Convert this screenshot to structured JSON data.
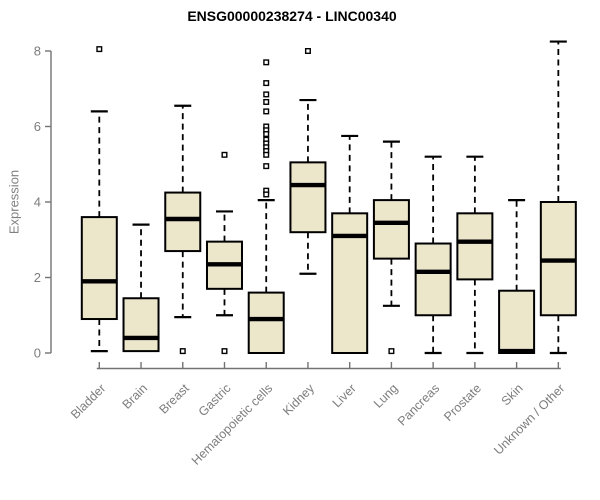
{
  "colors": {
    "background": "#ffffff",
    "box_fill": "#ece6cb",
    "box_stroke": "#000000",
    "median": "#000000",
    "whisker": "#000000",
    "outlier_stroke": "#000000",
    "axis_line": "#737373",
    "axis_text": "#7d7d7d",
    "title_text": "#000000"
  },
  "chart_data": {
    "type": "boxplot",
    "title": "ENSG00000238274 - LINC00340",
    "xlabel": "",
    "ylabel": "Expression",
    "ylim": [
      0,
      8
    ],
    "yticks": [
      0,
      2,
      4,
      6,
      8
    ],
    "grid": false,
    "legend": "none",
    "categories": [
      "Bladder",
      "Brain",
      "Breast",
      "Gastric",
      "Hematopoietic cells",
      "Kidney",
      "Liver",
      "Lung",
      "Pancreas",
      "Prostate",
      "Skin",
      "Unknown / Other"
    ],
    "series": [
      {
        "category": "Bladder",
        "whisker_low": 0.05,
        "q1": 0.9,
        "median": 1.9,
        "q3": 3.6,
        "whisker_high": 6.4,
        "outliers": [
          8.05
        ]
      },
      {
        "category": "Brain",
        "whisker_low": 0.05,
        "q1": 0.05,
        "median": 0.4,
        "q3": 1.45,
        "whisker_high": 3.4,
        "outliers": []
      },
      {
        "category": "Breast",
        "whisker_low": 0.95,
        "q1": 2.7,
        "median": 3.55,
        "q3": 4.25,
        "whisker_high": 6.55,
        "outliers": [
          0.05
        ]
      },
      {
        "category": "Gastric",
        "whisker_low": 1.0,
        "q1": 1.7,
        "median": 2.35,
        "q3": 2.95,
        "whisker_high": 3.75,
        "outliers": [
          5.25,
          0.05
        ]
      },
      {
        "category": "Hematopoietic cells",
        "whisker_low": 0.0,
        "q1": 0.0,
        "median": 0.9,
        "q3": 1.6,
        "whisker_high": 4.05,
        "outliers": [
          7.7,
          7.15,
          6.85,
          6.65,
          6.4,
          6.0,
          5.9,
          5.8,
          5.65,
          5.55,
          5.45,
          5.35,
          5.25,
          4.95,
          4.3,
          4.2
        ]
      },
      {
        "category": "Kidney",
        "whisker_low": 2.1,
        "q1": 3.2,
        "median": 4.45,
        "q3": 5.05,
        "whisker_high": 6.7,
        "outliers": [
          8.0
        ]
      },
      {
        "category": "Liver",
        "whisker_low": 0.0,
        "q1": 0.0,
        "median": 3.1,
        "q3": 3.7,
        "whisker_high": 5.75,
        "outliers": []
      },
      {
        "category": "Lung",
        "whisker_low": 1.25,
        "q1": 2.5,
        "median": 3.45,
        "q3": 4.05,
        "whisker_high": 5.6,
        "outliers": [
          0.05
        ]
      },
      {
        "category": "Pancreas",
        "whisker_low": 0.0,
        "q1": 1.0,
        "median": 2.15,
        "q3": 2.9,
        "whisker_high": 5.2,
        "outliers": []
      },
      {
        "category": "Prostate",
        "whisker_low": 0.0,
        "q1": 1.95,
        "median": 2.95,
        "q3": 3.7,
        "whisker_high": 5.2,
        "outliers": []
      },
      {
        "category": "Skin",
        "whisker_low": 0.0,
        "q1": 0.0,
        "median": 0.05,
        "q3": 1.65,
        "whisker_high": 4.05,
        "outliers": []
      },
      {
        "category": "Unknown / Other",
        "whisker_low": 0.0,
        "q1": 1.0,
        "median": 2.45,
        "q3": 4.0,
        "whisker_high": 8.25,
        "outliers": []
      }
    ]
  }
}
